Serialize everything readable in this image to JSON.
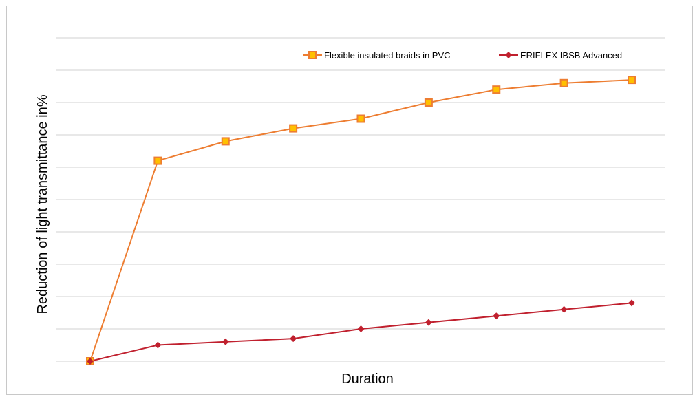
{
  "chart_data": {
    "type": "line",
    "title": "",
    "xlabel": "Duration",
    "ylabel": "Reduction of light transmittance in%",
    "ylim": [
      0,
      9
    ],
    "grid": true,
    "legend_position": "top-right",
    "x": [
      0,
      1,
      2,
      3,
      4,
      5,
      6,
      7,
      8
    ],
    "series": [
      {
        "name": "Flexible insulated braids in PVC",
        "color": "#ed7d31",
        "marker": "square",
        "values": [
          0,
          6.2,
          6.8,
          7.2,
          7.5,
          8.0,
          8.4,
          8.6,
          8.7
        ]
      },
      {
        "name": "ERIFLEX IBSB Advanced",
        "color": "#c0202e",
        "marker": "diamond",
        "values": [
          0,
          0.5,
          0.6,
          0.7,
          1.0,
          1.2,
          1.4,
          1.6,
          1.8
        ]
      }
    ]
  }
}
